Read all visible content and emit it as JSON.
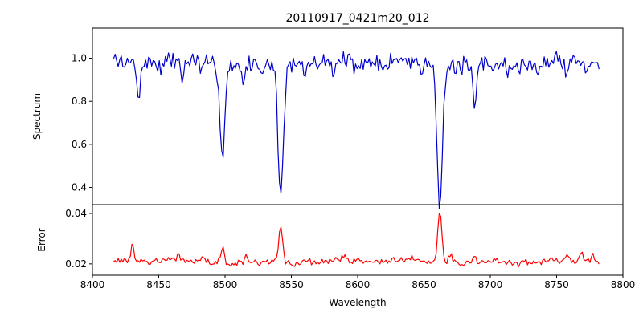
{
  "title": "20110917_0421m20_012",
  "xaxis": {
    "label": "Wavelength",
    "lim": [
      8400,
      8800
    ],
    "ticks": [
      {
        "v": 8400,
        "label": "8400"
      },
      {
        "v": 8450,
        "label": "8450"
      },
      {
        "v": 8500,
        "label": "8500"
      },
      {
        "v": 8550,
        "label": "8550"
      },
      {
        "v": 8600,
        "label": "8600"
      },
      {
        "v": 8650,
        "label": "8650"
      },
      {
        "v": 8700,
        "label": "8700"
      },
      {
        "v": 8750,
        "label": "8750"
      },
      {
        "v": 8800,
        "label": "8800"
      }
    ]
  },
  "chart_data": [
    {
      "type": "line",
      "name": "spectrum",
      "ylabel": "Spectrum",
      "color": "#0000cc",
      "x_start": 8416,
      "x_end": 8782,
      "points": 320,
      "ylim": [
        0.32,
        1.14
      ],
      "yticks": [
        {
          "v": 0.4,
          "label": "0.4"
        },
        {
          "v": 0.6,
          "label": "0.6"
        },
        {
          "v": 0.8,
          "label": "0.8"
        },
        {
          "v": 1.0,
          "label": "1.0"
        }
      ],
      "baseline": 0.978,
      "noise_amplitude": 0.05,
      "noise_seed": 7,
      "wave": [
        0.008,
        0.01
      ],
      "features": [
        {
          "center": 8424,
          "amplitude": -0.05,
          "sigma": 1.5
        },
        {
          "center": 8435,
          "amplitude": -0.17,
          "sigma": 1.8
        },
        {
          "center": 8452,
          "amplitude": -0.05,
          "sigma": 1.5
        },
        {
          "center": 8468,
          "amplitude": -0.09,
          "sigma": 1.6
        },
        {
          "center": 8482,
          "amplitude": -0.05,
          "sigma": 1.5
        },
        {
          "center": 8498,
          "amplitude": -0.44,
          "sigma": 2.4
        },
        {
          "center": 8514,
          "amplitude": -0.09,
          "sigma": 1.6
        },
        {
          "center": 8527,
          "amplitude": -0.05,
          "sigma": 1.5
        },
        {
          "center": 8542,
          "amplitude": -0.62,
          "sigma": 2.8
        },
        {
          "center": 8560,
          "amplitude": -0.04,
          "sigma": 1.5
        },
        {
          "center": 8582,
          "amplitude": -0.06,
          "sigma": 1.6
        },
        {
          "center": 8598,
          "amplitude": -0.05,
          "sigma": 1.5
        },
        {
          "center": 8621,
          "amplitude": -0.04,
          "sigma": 1.5
        },
        {
          "center": 8648,
          "amplitude": -0.05,
          "sigma": 1.5
        },
        {
          "center": 8662,
          "amplitude": -0.645,
          "sigma": 2.8
        },
        {
          "center": 8674,
          "amplitude": -0.05,
          "sigma": 1.5
        },
        {
          "center": 8688,
          "amplitude": -0.23,
          "sigma": 1.8
        },
        {
          "center": 8713,
          "amplitude": -0.05,
          "sigma": 1.5
        },
        {
          "center": 8736,
          "amplitude": -0.05,
          "sigma": 1.5
        },
        {
          "center": 8757,
          "amplitude": -0.05,
          "sigma": 1.5
        },
        {
          "center": 8772,
          "amplitude": -0.06,
          "sigma": 1.5
        }
      ]
    },
    {
      "type": "line",
      "name": "error",
      "ylabel": "Error",
      "color": "#ff0000",
      "x_start": 8416,
      "x_end": 8782,
      "points": 320,
      "ylim": [
        0.0155,
        0.0435
      ],
      "yticks": [
        {
          "v": 0.02,
          "label": "0.02"
        },
        {
          "v": 0.04,
          "label": "0.04"
        }
      ],
      "baseline": 0.0208,
      "noise_amplitude": 0.0015,
      "noise_seed": 13,
      "wave": [
        0.0004,
        0.0005
      ],
      "features": [
        {
          "center": 8430,
          "amplitude": 0.0075,
          "sigma": 1.4
        },
        {
          "center": 8465,
          "amplitude": 0.004,
          "sigma": 1.2
        },
        {
          "center": 8483,
          "amplitude": 0.0018,
          "sigma": 1.5
        },
        {
          "center": 8498,
          "amplitude": 0.006,
          "sigma": 2.0
        },
        {
          "center": 8516,
          "amplitude": 0.0025,
          "sigma": 1.5
        },
        {
          "center": 8542,
          "amplitude": 0.0145,
          "sigma": 2.2
        },
        {
          "center": 8562,
          "amplitude": 0.0015,
          "sigma": 2.0
        },
        {
          "center": 8590,
          "amplitude": 0.0012,
          "sigma": 3.0
        },
        {
          "center": 8640,
          "amplitude": 0.0008,
          "sigma": 3.0
        },
        {
          "center": 8662,
          "amplitude": 0.0215,
          "sigma": 2.2
        },
        {
          "center": 8670,
          "amplitude": 0.004,
          "sigma": 2.0
        },
        {
          "center": 8688,
          "amplitude": 0.0035,
          "sigma": 1.5
        },
        {
          "center": 8705,
          "amplitude": 0.0012,
          "sigma": 2.0
        },
        {
          "center": 8726,
          "amplitude": 0.0012,
          "sigma": 2.0
        },
        {
          "center": 8746,
          "amplitude": 0.0015,
          "sigma": 2.0
        },
        {
          "center": 8758,
          "amplitude": 0.0025,
          "sigma": 1.8
        },
        {
          "center": 8769,
          "amplitude": 0.003,
          "sigma": 1.6
        },
        {
          "center": 8777,
          "amplitude": 0.0025,
          "sigma": 1.4
        }
      ]
    }
  ],
  "colors": {
    "axis": "#000000",
    "background": "#ffffff",
    "spectrum_line": "#0000cc",
    "error_line": "#ff0000"
  }
}
